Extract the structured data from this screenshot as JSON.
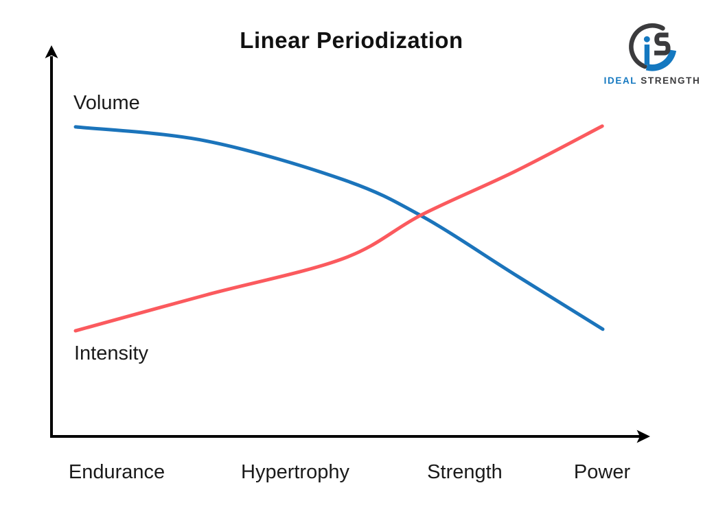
{
  "page": {
    "background": "#ffffff"
  },
  "header": {
    "title": "Linear Periodization"
  },
  "logo": {
    "icon": "is-circle-monogram-icon",
    "brand_first": "IDEAL",
    "brand_second": "STRENGTH",
    "blue": "#1478c0",
    "dark": "#3b3b3d"
  },
  "chart_data": {
    "type": "line",
    "title": "Linear Periodization",
    "xlabel": "",
    "ylabel": "",
    "grid": false,
    "legend": "labels drawn at curve starts",
    "axes": {
      "color": "#000000",
      "arrows": true
    },
    "categories": [
      "Endurance",
      "Hypertrophy",
      "Strength",
      "Power"
    ],
    "y_range_pct": [
      0,
      100
    ],
    "series": [
      {
        "name": "Volume",
        "color": "#1b74bb",
        "points_pct": [
          [
            0,
            79.7
          ],
          [
            24.7,
            76.1
          ],
          [
            50.8,
            66.1
          ],
          [
            65.7,
            56.7
          ],
          [
            83.3,
            41.7
          ],
          [
            100,
            27.6
          ]
        ]
      },
      {
        "name": "Intensity",
        "color": "#fb5a5e",
        "points_pct": [
          [
            0,
            27.2
          ],
          [
            24.7,
            36.4
          ],
          [
            50.8,
            45.8
          ],
          [
            65.7,
            57.1
          ],
          [
            83.3,
            68.2
          ],
          [
            99.9,
            79.9
          ]
        ]
      }
    ],
    "crossing": {
      "note": "curves intersect between Strength and Hypertrophy regions",
      "x_pct": 65.7,
      "y_pct": 57
    }
  }
}
